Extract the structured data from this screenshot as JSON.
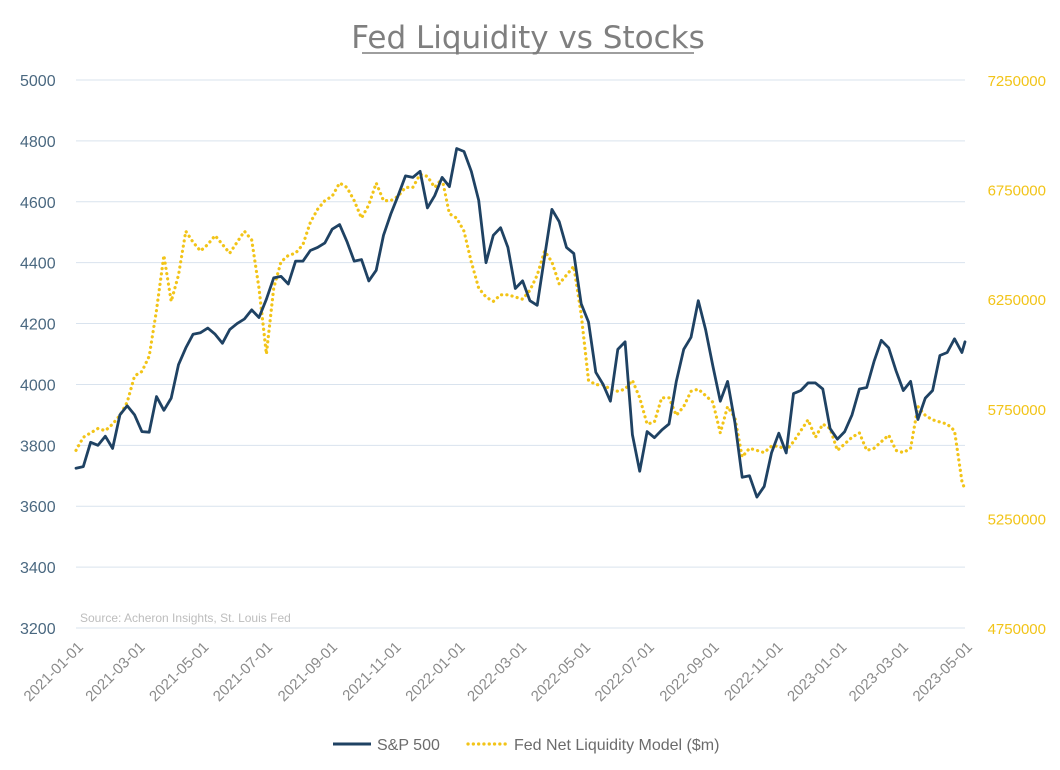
{
  "chart_data": {
    "type": "line",
    "title": "Fed Liquidity vs Stocks",
    "source": "Source: Acheron Insights, St. Louis Fed",
    "grid": true,
    "legend_position": "bottom",
    "x_range": [
      "2021-01-01",
      "2023-05-01"
    ],
    "x_ticks": [
      "2021-01-01",
      "2021-03-01",
      "2021-05-01",
      "2021-07-01",
      "2021-09-01",
      "2021-11-01",
      "2022-01-01",
      "2022-03-01",
      "2022-05-01",
      "2022-07-01",
      "2022-09-01",
      "2022-11-01",
      "2023-01-01",
      "2023-03-01",
      "2023-05-01"
    ],
    "y_left": {
      "range": [
        3200,
        5000
      ],
      "ticks": [
        3200,
        3400,
        3600,
        3800,
        4000,
        4200,
        4400,
        4600,
        4800,
        5000
      ],
      "color": "#4a6880"
    },
    "y_right": {
      "range": [
        4750000,
        7250000
      ],
      "ticks": [
        4750000,
        5250000,
        5750000,
        6250000,
        6750000,
        7250000
      ],
      "color": "#f2c418"
    },
    "series": [
      {
        "name": "S&P 500",
        "axis": "left",
        "color": "#1f4263",
        "style": "solid",
        "x_start": "2021-01-01",
        "x_step_days": 7,
        "values": [
          3725,
          3730,
          3810,
          3800,
          3830,
          3790,
          3900,
          3930,
          3900,
          3845,
          3843,
          3960,
          3915,
          3955,
          4065,
          4120,
          4165,
          4170,
          4185,
          4165,
          4135,
          4180,
          4200,
          4215,
          4245,
          4220,
          4280,
          4350,
          4355,
          4330,
          4405,
          4405,
          4440,
          4450,
          4465,
          4510,
          4525,
          4470,
          4405,
          4410,
          4340,
          4375,
          4490,
          4560,
          4620,
          4685,
          4680,
          4700,
          4580,
          4620,
          4680,
          4650,
          4775,
          4765,
          4700,
          4605,
          4400,
          4490,
          4515,
          4450,
          4315,
          4340,
          4275,
          4260,
          4420,
          4575,
          4535,
          4450,
          4430,
          4265,
          4205,
          4040,
          4000,
          3945,
          4115,
          4140,
          3835,
          3715,
          3845,
          3825,
          3850,
          3870,
          4010,
          4115,
          4155,
          4275,
          4180,
          4060,
          3945,
          4010,
          3875,
          3695,
          3700,
          3630,
          3665,
          3775,
          3840,
          3775,
          3970,
          3980,
          4005,
          4005,
          3985,
          3855,
          3820,
          3845,
          3900,
          3985,
          3990,
          4075,
          4145,
          4120,
          4045,
          3980,
          4010,
          3885,
          3955,
          3980,
          4095,
          4105,
          4150,
          4105,
          4140
        ]
      },
      {
        "name": "Fed Net Liquidity Model ($m)",
        "axis": "right",
        "color": "#f2c418",
        "style": "dotted",
        "x_start": "2021-01-01",
        "x_step_days": 7,
        "values": [
          5560000,
          5620000,
          5640000,
          5660000,
          5650000,
          5680000,
          5720000,
          5780000,
          5900000,
          5920000,
          5990000,
          6200000,
          6450000,
          6240000,
          6360000,
          6560000,
          6510000,
          6470000,
          6500000,
          6540000,
          6500000,
          6460000,
          6510000,
          6560000,
          6520000,
          6300000,
          6000000,
          6300000,
          6420000,
          6450000,
          6460000,
          6500000,
          6600000,
          6660000,
          6700000,
          6720000,
          6780000,
          6760000,
          6700000,
          6620000,
          6680000,
          6780000,
          6700000,
          6700000,
          6720000,
          6760000,
          6760000,
          6820000,
          6810000,
          6760000,
          6800000,
          6640000,
          6620000,
          6560000,
          6420000,
          6300000,
          6260000,
          6240000,
          6270000,
          6270000,
          6260000,
          6250000,
          6290000,
          6360000,
          6470000,
          6420000,
          6320000,
          6360000,
          6400000,
          6180000,
          5880000,
          5860000,
          5860000,
          5840000,
          5830000,
          5840000,
          5880000,
          5800000,
          5680000,
          5690000,
          5800000,
          5800000,
          5720000,
          5760000,
          5830000,
          5840000,
          5810000,
          5780000,
          5640000,
          5760000,
          5710000,
          5530000,
          5570000,
          5560000,
          5550000,
          5580000,
          5580000,
          5560000,
          5600000,
          5650000,
          5700000,
          5620000,
          5680000,
          5660000,
          5560000,
          5590000,
          5620000,
          5640000,
          5560000,
          5570000,
          5600000,
          5630000,
          5560000,
          5550000,
          5570000,
          5760000,
          5720000,
          5700000,
          5690000,
          5680000,
          5650000,
          5420000,
          5380000
        ]
      }
    ]
  }
}
